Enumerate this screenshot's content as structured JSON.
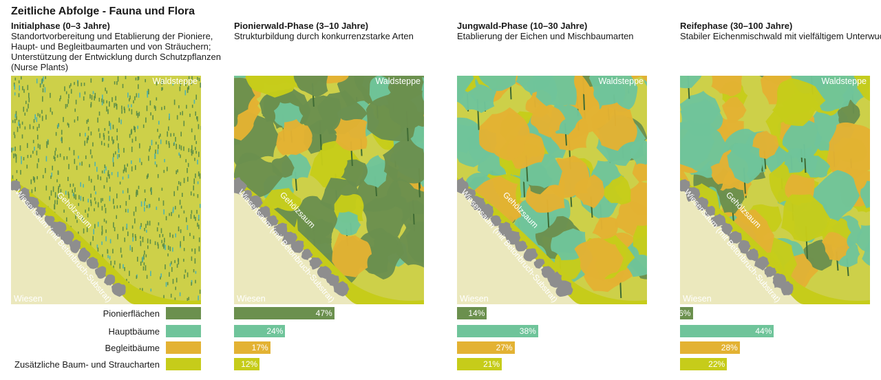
{
  "title": "Zeitliche Abfolge - Fauna und Flora",
  "colors": {
    "pionier": "#6b904e",
    "haupt": "#6fc49a",
    "begleit": "#e3b233",
    "zusatz": "#c6cc1a",
    "field": "#cdd049",
    "meadow": "#ebe8bd",
    "stone": "#8e8e8e"
  },
  "labels": {
    "waldsteppe": "Waldsteppe",
    "wiesen": "Wiesen",
    "gehoelzsaum": "Gehölzsaum",
    "wiesensaum": "Wiesensaum (mit Betonbruch-Substrat)"
  },
  "legend": [
    {
      "label": "Pionierflächen",
      "color": "#6b904e"
    },
    {
      "label": "Hauptbäume",
      "color": "#6fc49a"
    },
    {
      "label": "Begleitbäume",
      "color": "#e3b233"
    },
    {
      "label": "Zusätzliche Baum- und Straucharten",
      "color": "#c6cc1a"
    }
  ],
  "phases": [
    {
      "title": "Initialphase (0–3 Jahre)",
      "description": "Standortvorbereitung und Etablierung der Pioniere, Haupt- und Begleitbaumarten und von Sträuchern; Unterstützung der Entwicklung durch Schutzpflanzen (Nurse Plants)"
    },
    {
      "title": "Pionierwald-Phase (3–10 Jahre)",
      "description": "Strukturbildung durch konkurrenzstarke Arten"
    },
    {
      "title": "Jungwald-Phase (10–30 Jahre)",
      "description": "Etablierung der Eichen und Mischbaumarten"
    },
    {
      "title": "Reifephase (30–100 Jahre)",
      "description": "Stabiler Eichenmischwald mit vielfältigem Unterwuchs"
    }
  ],
  "chart_data": {
    "type": "bar",
    "categories": [
      "Pionierflächen",
      "Hauptbäume",
      "Begleitbäume",
      "Zusätzliche Baum- und Straucharten"
    ],
    "series": [
      {
        "name": "Pionierwald-Phase (3–10 Jahre)",
        "values": [
          47,
          24,
          17,
          12
        ]
      },
      {
        "name": "Jungwald-Phase (10–30 Jahre)",
        "values": [
          14,
          38,
          27,
          21
        ]
      },
      {
        "name": "Reifephase (30–100 Jahre)",
        "values": [
          6,
          44,
          28,
          22
        ]
      }
    ],
    "unit": "%"
  }
}
